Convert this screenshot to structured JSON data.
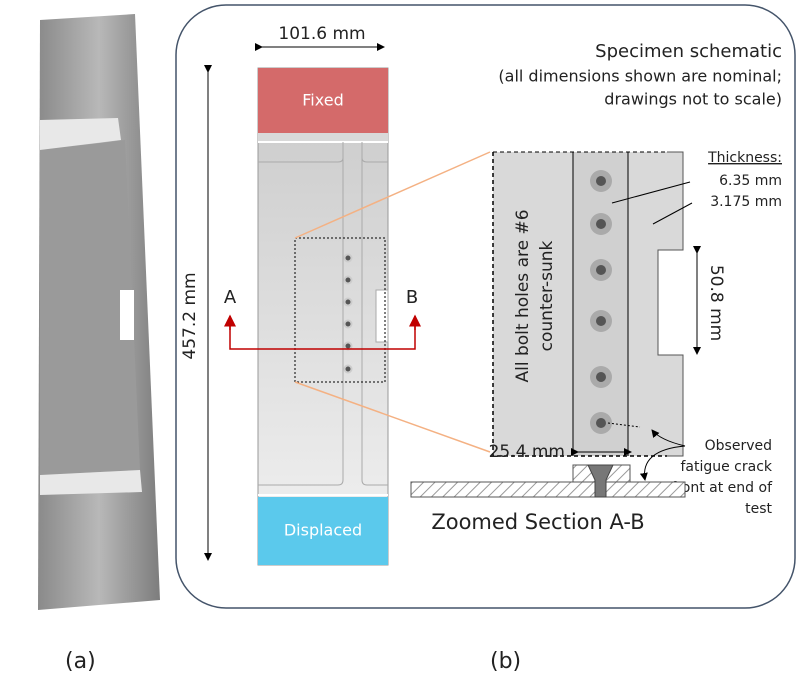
{
  "figure": {
    "panel_a_label": "(a)",
    "panel_b_label": "(b)",
    "title": "Specimen schematic",
    "notes": [
      "(all dimensions shown are nominal;",
      "drawings not to scale)"
    ],
    "width_dim": "101.6 mm",
    "length_dim": "457.2 mm",
    "fixed_label": "Fixed",
    "displaced_label": "Displaced",
    "section_start": "A",
    "section_end": "B",
    "thickness_title": "Thickness:",
    "thickness_values": [
      "6.35 mm",
      "3.175 mm"
    ],
    "notch_dim": "50.8 mm",
    "bolt_note": [
      "All bolt holes are #6",
      "counter-sunk"
    ],
    "offset_dim": "25.4 mm",
    "crack_note": [
      "Observed",
      "fatigue crack",
      "front at end of",
      "test"
    ],
    "section_title": "Zoomed Section A-B"
  }
}
